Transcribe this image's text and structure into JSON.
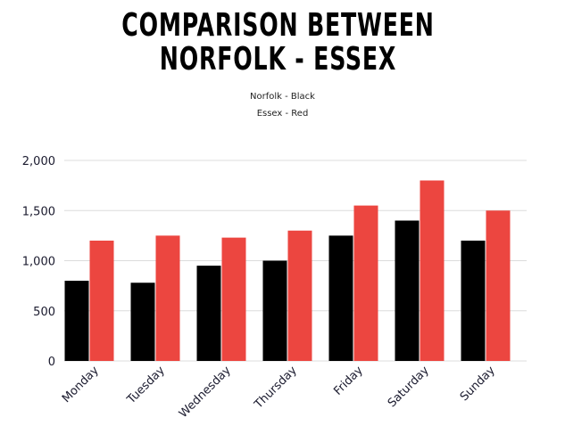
{
  "title_line1": "COMPARISON BETWEEN",
  "title_line2": "NORFOLK - ESSEX",
  "legend": {
    "line1": "Norfolk - Black",
    "line2": "Essex - Red"
  },
  "colors": {
    "norfolk": "#000000",
    "essex": "#ec4640",
    "grid": "#dcdcdc",
    "axis_text": "#1a1a2e"
  },
  "chart_data": {
    "type": "bar",
    "categories": [
      "Monday",
      "Tuesday",
      "Wednesday",
      "Thursday",
      "Friday",
      "Saturday",
      "Sunday"
    ],
    "series": [
      {
        "values": [
          800,
          780,
          950,
          1000,
          1250,
          1400,
          1200
        ],
        "color": "#000000"
      },
      {
        "values": [
          1200,
          1250,
          1230,
          1300,
          1550,
          1800,
          1500
        ],
        "color": "#ec4640"
      }
    ],
    "ylim": [
      0,
      2000
    ],
    "yticks": [
      0,
      500,
      1000,
      1500,
      2000
    ],
    "ytick_labels": [
      "0",
      "500",
      "1,000",
      "1,500",
      "2,000"
    ],
    "grid": true
  }
}
